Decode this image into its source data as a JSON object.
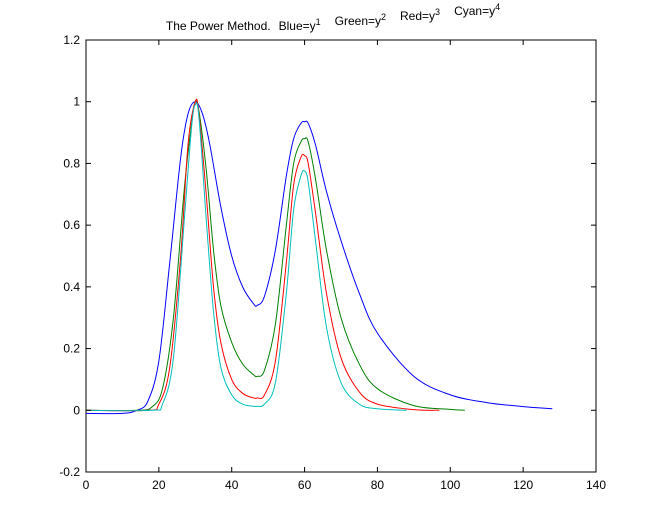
{
  "chart_data": {
    "type": "line",
    "title": {
      "lead": "The Power Method.",
      "parts": [
        {
          "label": "Blue=y",
          "exp": "1"
        },
        {
          "label": "Green=y",
          "exp": "2"
        },
        {
          "label": "Red=y",
          "exp": "3"
        },
        {
          "label": "Cyan=y",
          "exp": "4"
        }
      ]
    },
    "xlabel": "",
    "ylabel": "",
    "xlim": [
      0,
      140
    ],
    "ylim": [
      -0.2,
      1.2
    ],
    "xticks": [
      0,
      20,
      40,
      60,
      80,
      100,
      120,
      140
    ],
    "yticks": [
      -0.2,
      0,
      0.2,
      0.4,
      0.6,
      0.8,
      1,
      1.2
    ],
    "xtick_labels": [
      "0",
      "20",
      "40",
      "60",
      "80",
      "100",
      "120",
      "140"
    ],
    "ytick_labels": [
      "-0.2",
      "0",
      "0.2",
      "0.4",
      "0.6",
      "0.8",
      "1",
      "1.2"
    ],
    "grid": false,
    "series": [
      {
        "color": "#0000ff",
        "x": [
          0,
          10,
          14,
          17,
          20,
          23,
          26,
          28,
          30,
          32,
          34,
          37,
          40,
          43,
          46,
          47,
          49,
          52,
          55,
          57,
          59,
          60,
          61,
          63,
          66,
          70,
          75,
          80,
          90,
          100,
          110,
          120,
          128
        ],
        "y": [
          -0.01,
          -0.01,
          0.0,
          0.03,
          0.16,
          0.48,
          0.82,
          0.96,
          1.0,
          0.96,
          0.86,
          0.66,
          0.5,
          0.4,
          0.345,
          0.34,
          0.37,
          0.52,
          0.76,
          0.88,
          0.93,
          0.935,
          0.93,
          0.86,
          0.71,
          0.55,
          0.38,
          0.25,
          0.11,
          0.05,
          0.025,
          0.012,
          0.005
        ]
      },
      {
        "color": "#008000",
        "x": [
          0,
          14,
          18,
          21,
          24,
          27,
          29,
          30,
          31,
          33,
          35,
          37,
          40,
          43,
          46,
          47,
          49,
          52,
          55,
          57,
          59,
          60,
          61,
          63,
          66,
          70,
          75,
          80,
          90,
          100,
          104
        ],
        "y": [
          0.0,
          0.0,
          0.01,
          0.07,
          0.3,
          0.72,
          0.93,
          1.0,
          0.97,
          0.78,
          0.52,
          0.34,
          0.22,
          0.15,
          0.115,
          0.11,
          0.13,
          0.28,
          0.6,
          0.8,
          0.87,
          0.88,
          0.87,
          0.75,
          0.52,
          0.3,
          0.15,
          0.07,
          0.015,
          0.003,
          0.0
        ]
      },
      {
        "color": "#ff0000",
        "x": [
          0,
          17,
          20,
          23,
          26,
          28,
          30,
          31,
          33,
          35,
          37,
          40,
          43,
          46,
          47,
          49,
          52,
          55,
          57,
          59,
          60,
          61,
          63,
          66,
          70,
          75,
          80,
          90,
          97
        ],
        "y": [
          0.0,
          0.0,
          0.02,
          0.14,
          0.5,
          0.86,
          1.0,
          0.96,
          0.7,
          0.4,
          0.22,
          0.1,
          0.055,
          0.04,
          0.04,
          0.05,
          0.16,
          0.48,
          0.73,
          0.82,
          0.825,
          0.8,
          0.64,
          0.38,
          0.17,
          0.06,
          0.02,
          0.002,
          0.0
        ]
      },
      {
        "color": "#00bfbf",
        "x": [
          0,
          18,
          21,
          24,
          27,
          29,
          30,
          31,
          33,
          35,
          37,
          40,
          43,
          46,
          47,
          49,
          52,
          55,
          57,
          59,
          60,
          61,
          63,
          66,
          70,
          75,
          80,
          88
        ],
        "y": [
          0.0,
          0.0,
          0.02,
          0.17,
          0.62,
          0.92,
          0.99,
          0.95,
          0.62,
          0.32,
          0.14,
          0.05,
          0.02,
          0.013,
          0.013,
          0.02,
          0.09,
          0.38,
          0.65,
          0.76,
          0.775,
          0.74,
          0.55,
          0.27,
          0.09,
          0.02,
          0.005,
          0.0
        ]
      }
    ]
  }
}
